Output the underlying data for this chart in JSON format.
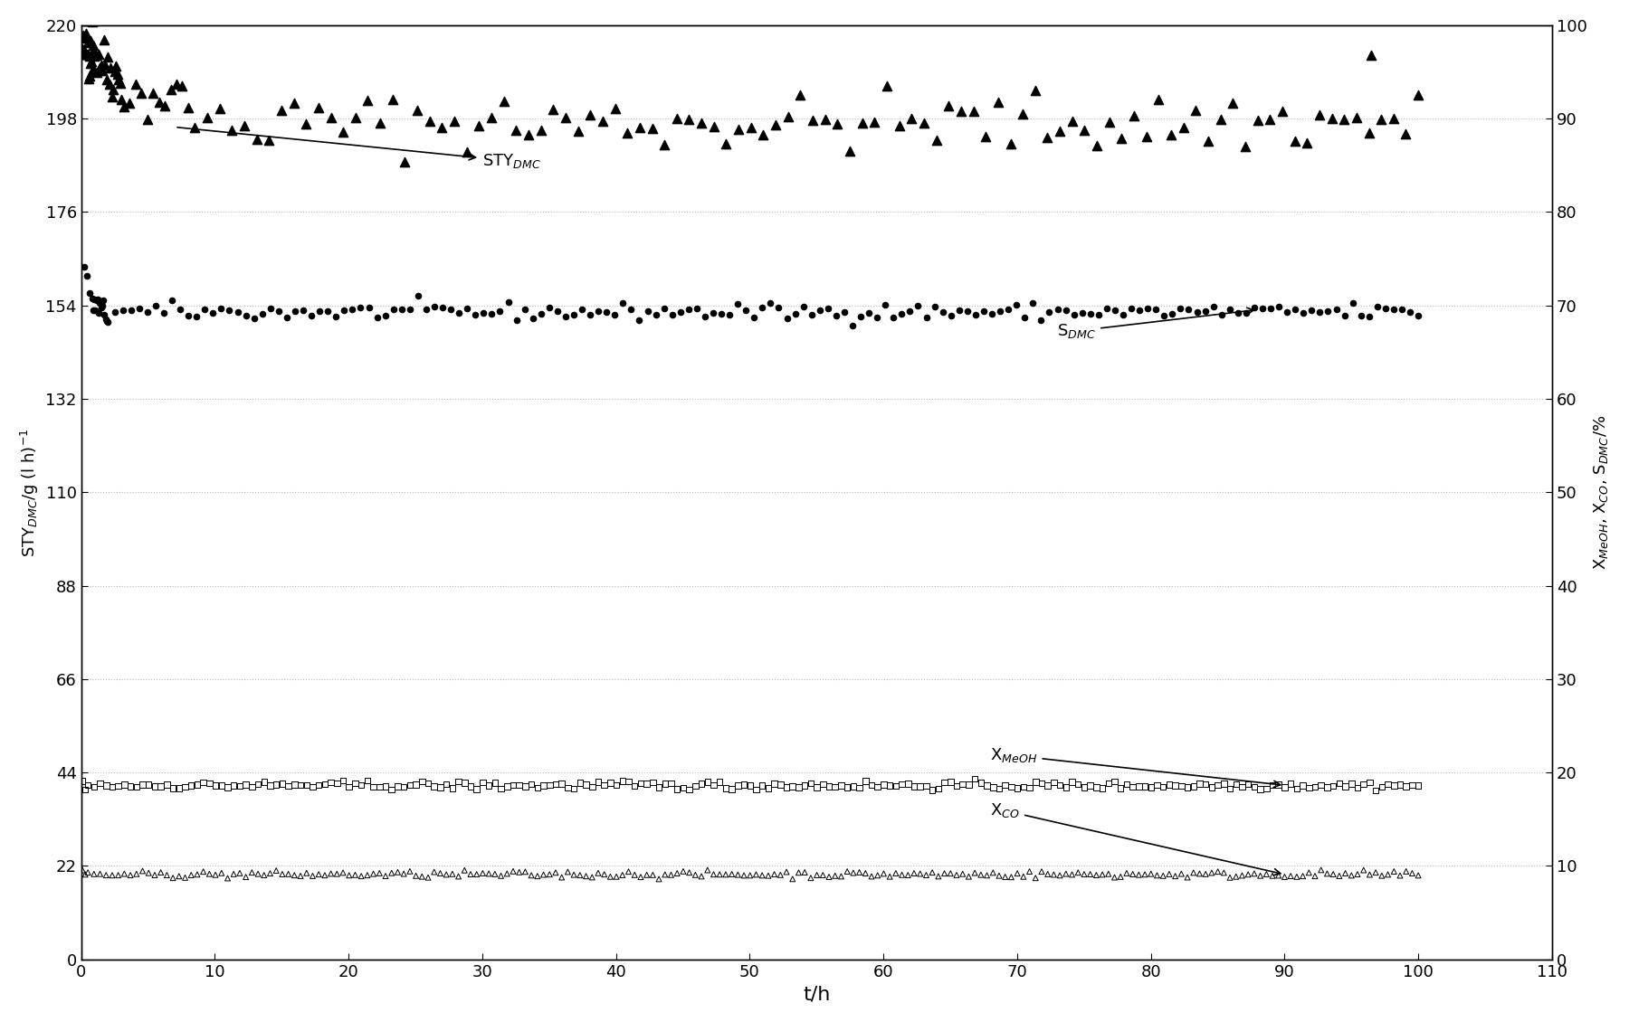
{
  "xlabel": "t/h",
  "ylabel_left": "STY$_{DMC}$/g (l h)$^{-1}$",
  "ylabel_right": "X$_{MeOH}$, X$_{CO}$, S$_{DMC}$/%",
  "xlim": [
    0,
    110
  ],
  "ylim_left": [
    0,
    220
  ],
  "ylim_right": [
    0,
    100
  ],
  "yticks_left": [
    0,
    22,
    44,
    66,
    88,
    110,
    132,
    154,
    176,
    198,
    220
  ],
  "yticks_right": [
    0,
    10,
    20,
    30,
    40,
    50,
    60,
    70,
    80,
    90,
    100
  ],
  "xticks": [
    0,
    10,
    20,
    30,
    40,
    50,
    60,
    70,
    80,
    90,
    100,
    110
  ],
  "sty_dmc_label": "STY$_{DMC}$",
  "s_dmc_label": "S$_{DMC}$",
  "x_meoh_label": "X$_{MeOH}$",
  "x_co_label": "X$_{CO}$",
  "bg_color": "#ffffff",
  "grid_color": "#bbbbbb",
  "scale_factor": 2.2
}
